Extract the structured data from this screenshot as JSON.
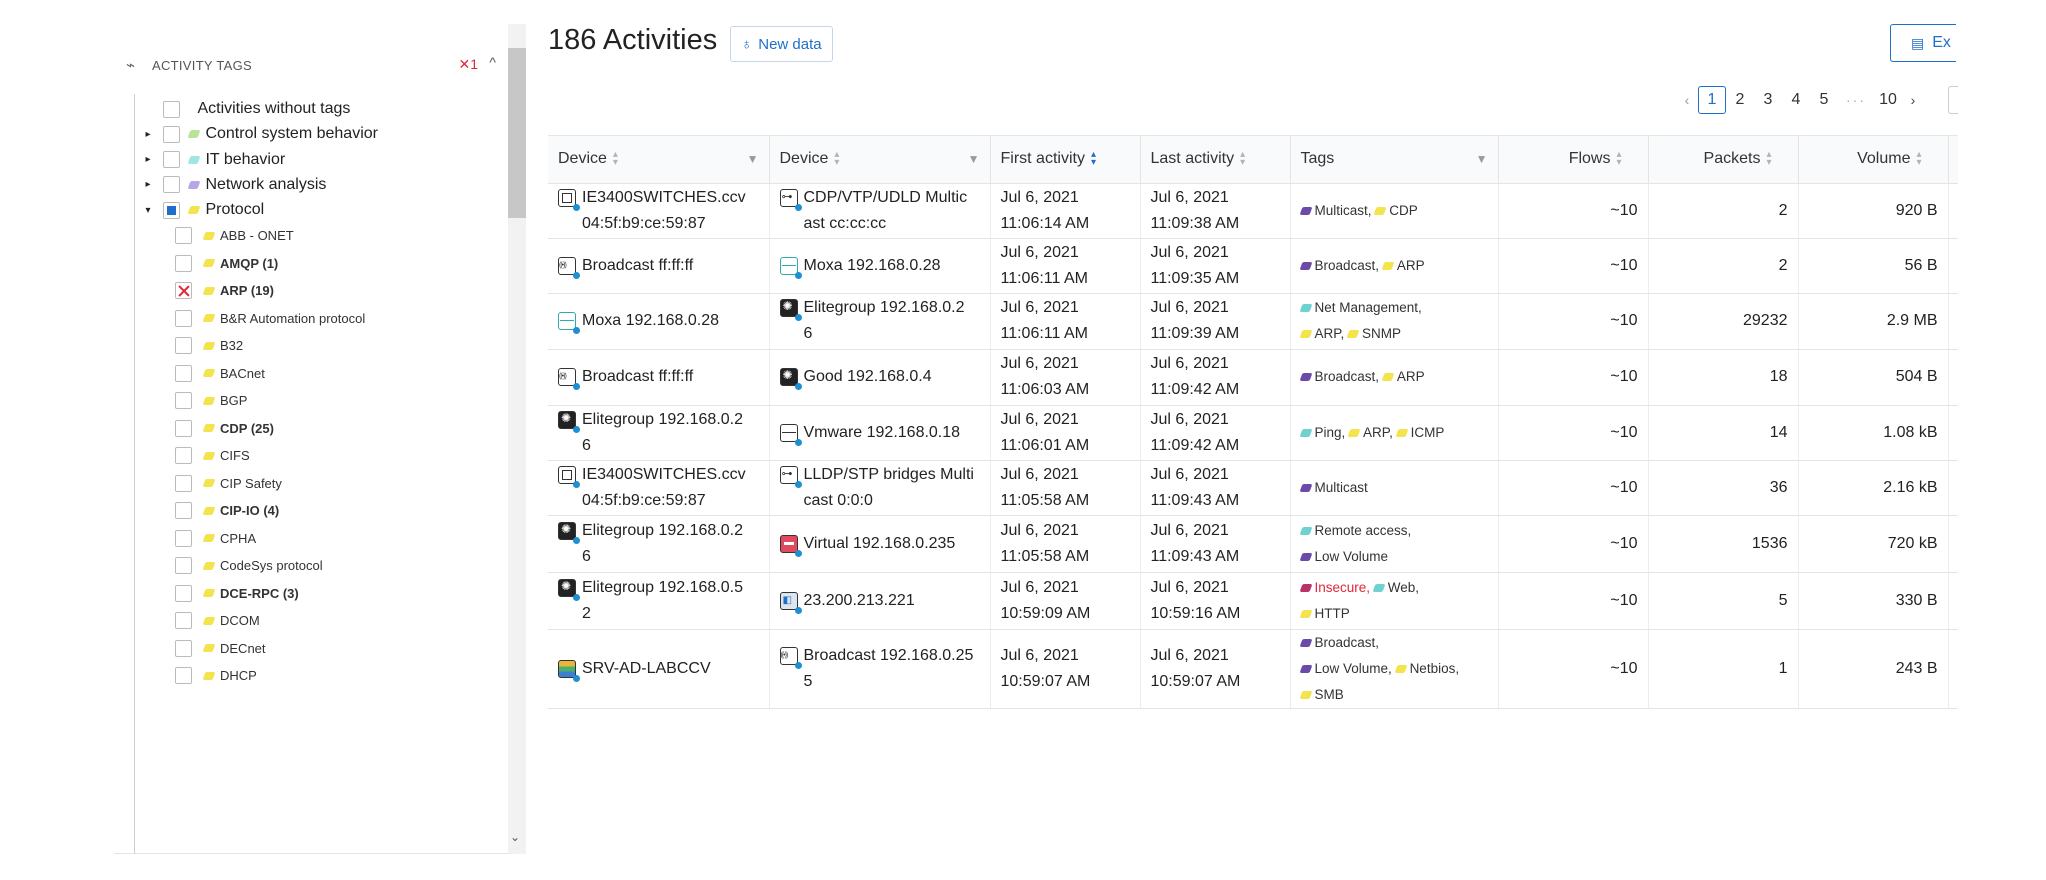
{
  "filter_panel": {
    "title": "ACTIVITY TAGS",
    "clear_label": "✕1",
    "items": [
      {
        "label": "Activities without tags",
        "level": 1,
        "expandable": false,
        "checkbox": "none",
        "icon_color": ""
      },
      {
        "label": "Control system behavior",
        "level": 1,
        "expandable": true,
        "checkbox": "none",
        "icon_color": "green"
      },
      {
        "label": "IT behavior",
        "level": 1,
        "expandable": true,
        "checkbox": "none",
        "icon_color": "cyan"
      },
      {
        "label": "Network analysis",
        "level": 1,
        "expandable": true,
        "checkbox": "none",
        "icon_color": "purple"
      },
      {
        "label": "Protocol",
        "level": 1,
        "expandable": true,
        "expanded": true,
        "checkbox": "partial",
        "icon_color": "yellow"
      },
      {
        "label": "ABB - ONET",
        "level": 2,
        "checkbox": "none",
        "bold": false
      },
      {
        "label": "AMQP (1)",
        "level": 2,
        "checkbox": "none",
        "bold": true
      },
      {
        "label": "ARP (19)",
        "level": 2,
        "checkbox": "excluded",
        "bold": true
      },
      {
        "label": "B&R Automation protocol",
        "level": 2,
        "checkbox": "none",
        "bold": false
      },
      {
        "label": "B32",
        "level": 2,
        "checkbox": "none",
        "bold": false
      },
      {
        "label": "BACnet",
        "level": 2,
        "checkbox": "none",
        "bold": false
      },
      {
        "label": "BGP",
        "level": 2,
        "checkbox": "none",
        "bold": false
      },
      {
        "label": "CDP (25)",
        "level": 2,
        "checkbox": "none",
        "bold": true
      },
      {
        "label": "CIFS",
        "level": 2,
        "checkbox": "none",
        "bold": false
      },
      {
        "label": "CIP Safety",
        "level": 2,
        "checkbox": "none",
        "bold": false
      },
      {
        "label": "CIP-IO (4)",
        "level": 2,
        "checkbox": "none",
        "bold": true
      },
      {
        "label": "CPHA",
        "level": 2,
        "checkbox": "none",
        "bold": false
      },
      {
        "label": "CodeSys protocol",
        "level": 2,
        "checkbox": "none",
        "bold": false
      },
      {
        "label": "DCE-RPC (3)",
        "level": 2,
        "checkbox": "none",
        "bold": true
      },
      {
        "label": "DCOM",
        "level": 2,
        "checkbox": "none",
        "bold": false
      },
      {
        "label": "DECnet",
        "level": 2,
        "checkbox": "none",
        "bold": false
      },
      {
        "label": "DHCP",
        "level": 2,
        "checkbox": "none",
        "bold": false
      }
    ]
  },
  "header": {
    "title": "186 Activities",
    "new_data_label": "New data",
    "export_label": "Ex"
  },
  "pagination": {
    "pages": [
      "1",
      "2",
      "3",
      "4",
      "5"
    ],
    "active": "1",
    "ellipsis": "···",
    "last": "10"
  },
  "table": {
    "columns": [
      "Device",
      "Device",
      "First activity",
      "Last activity",
      "Tags",
      "Flows",
      "Packets",
      "Volume"
    ],
    "rows": [
      {
        "src": {
          "icon": "switch",
          "line1": "IE3400SWITCHES.ccv",
          "line2": "04:5f:b9:ce:59:87"
        },
        "dst": {
          "icon": "multicast",
          "line1": "CDP/VTP/UDLD Multic",
          "line2": "ast cc:cc:cc"
        },
        "first": [
          "Jul 6, 2021",
          "11:06:14 AM"
        ],
        "last": [
          "Jul 6, 2021",
          "11:09:38 AM"
        ],
        "tags": [
          [
            {
              "c": "purple",
              "t": "Multicast,"
            },
            {
              "c": "yellow",
              "t": "CDP"
            }
          ]
        ],
        "flows": "~10",
        "packets": "2",
        "volume": "920 B"
      },
      {
        "src": {
          "icon": "broadcast",
          "line1": "Broadcast ff:ff:ff",
          "line2": ""
        },
        "dst": {
          "icon": "moxa",
          "line1": "Moxa 192.168.0.28",
          "line2": ""
        },
        "first": [
          "Jul 6, 2021",
          "11:06:11 AM"
        ],
        "last": [
          "Jul 6, 2021",
          "11:09:35 AM"
        ],
        "tags": [
          [
            {
              "c": "purple",
              "t": "Broadcast,"
            },
            {
              "c": "yellow",
              "t": "ARP"
            }
          ]
        ],
        "flows": "~10",
        "packets": "2",
        "volume": "56 B"
      },
      {
        "src": {
          "icon": "moxa",
          "line1": "Moxa 192.168.0.28",
          "line2": ""
        },
        "dst": {
          "icon": "gear",
          "line1": "Elitegroup 192.168.0.2",
          "line2": "6"
        },
        "first": [
          "Jul 6, 2021",
          "11:06:11 AM"
        ],
        "last": [
          "Jul 6, 2021",
          "11:09:39 AM"
        ],
        "tags": [
          [
            {
              "c": "cyan",
              "t": "Net Management,"
            }
          ],
          [
            {
              "c": "yellow",
              "t": "ARP,"
            },
            {
              "c": "yellow",
              "t": "SNMP"
            }
          ]
        ],
        "flows": "~10",
        "packets": "29232",
        "volume": "2.9 MB"
      },
      {
        "src": {
          "icon": "broadcast",
          "line1": "Broadcast ff:ff:ff",
          "line2": ""
        },
        "dst": {
          "icon": "gear",
          "line1": "Good 192.168.0.4",
          "line2": ""
        },
        "first": [
          "Jul 6, 2021",
          "11:06:03 AM"
        ],
        "last": [
          "Jul 6, 2021",
          "11:09:42 AM"
        ],
        "tags": [
          [
            {
              "c": "purple",
              "t": "Broadcast,"
            },
            {
              "c": "yellow",
              "t": "ARP"
            }
          ]
        ],
        "flows": "~10",
        "packets": "18",
        "volume": "504 B"
      },
      {
        "src": {
          "icon": "gear",
          "line1": "Elitegroup 192.168.0.2",
          "line2": "6"
        },
        "dst": {
          "icon": "vmware",
          "line1": "Vmware 192.168.0.18",
          "line2": ""
        },
        "first": [
          "Jul 6, 2021",
          "11:06:01 AM"
        ],
        "last": [
          "Jul 6, 2021",
          "11:09:42 AM"
        ],
        "tags": [
          [
            {
              "c": "cyan",
              "t": "Ping,"
            },
            {
              "c": "yellow",
              "t": "ARP,"
            },
            {
              "c": "yellow",
              "t": "ICMP"
            }
          ]
        ],
        "flows": "~10",
        "packets": "14",
        "volume": "1.08 kB"
      },
      {
        "src": {
          "icon": "switch",
          "line1": "IE3400SWITCHES.ccv",
          "line2": "04:5f:b9:ce:59:87"
        },
        "dst": {
          "icon": "multicast",
          "line1": "LLDP/STP bridges Multi",
          "line2": "cast 0:0:0"
        },
        "first": [
          "Jul 6, 2021",
          "11:05:58 AM"
        ],
        "last": [
          "Jul 6, 2021",
          "11:09:43 AM"
        ],
        "tags": [
          [
            {
              "c": "purple",
              "t": "Multicast"
            }
          ]
        ],
        "flows": "~10",
        "packets": "36",
        "volume": "2.16 kB"
      },
      {
        "src": {
          "icon": "gear",
          "line1": "Elitegroup 192.168.0.2",
          "line2": "6"
        },
        "dst": {
          "icon": "virtual",
          "line1": "Virtual 192.168.0.235",
          "line2": ""
        },
        "first": [
          "Jul 6, 2021",
          "11:05:58 AM"
        ],
        "last": [
          "Jul 6, 2021",
          "11:09:43 AM"
        ],
        "tags": [
          [
            {
              "c": "cyan",
              "t": "Remote access,"
            }
          ],
          [
            {
              "c": "purple",
              "t": "Low Volume"
            }
          ]
        ],
        "flows": "~10",
        "packets": "1536",
        "volume": "720 kB"
      },
      {
        "src": {
          "icon": "gear",
          "line1": "Elitegroup 192.168.0.5",
          "line2": "2"
        },
        "dst": {
          "icon": "ext",
          "line1": "23.200.213.221",
          "line2": ""
        },
        "first": [
          "Jul 6, 2021",
          "10:59:09 AM"
        ],
        "last": [
          "Jul 6, 2021",
          "10:59:16 AM"
        ],
        "tags": [
          [
            {
              "c": "red",
              "t": "Insecure,",
              "insecure": true
            },
            {
              "c": "cyan",
              "t": "Web,"
            }
          ],
          [
            {
              "c": "yellow",
              "t": "HTTP"
            }
          ]
        ],
        "flows": "~10",
        "packets": "5",
        "volume": "330 B"
      },
      {
        "src": {
          "icon": "server",
          "line1": "SRV-AD-LABCCV",
          "line2": ""
        },
        "dst": {
          "icon": "broadcast",
          "line1": "Broadcast 192.168.0.25",
          "line2": "5"
        },
        "first": [
          "Jul 6, 2021",
          "10:59:07 AM"
        ],
        "last": [
          "Jul 6, 2021",
          "10:59:07 AM"
        ],
        "tags": [
          [
            {
              "c": "purple",
              "t": "Broadcast,"
            }
          ],
          [
            {
              "c": "purple",
              "t": "Low Volume,"
            },
            {
              "c": "yellow",
              "t": "Netbios,"
            }
          ],
          [
            {
              "c": "yellow",
              "t": "SMB"
            }
          ]
        ],
        "flows": "~10",
        "packets": "1",
        "volume": "243 B"
      }
    ]
  }
}
